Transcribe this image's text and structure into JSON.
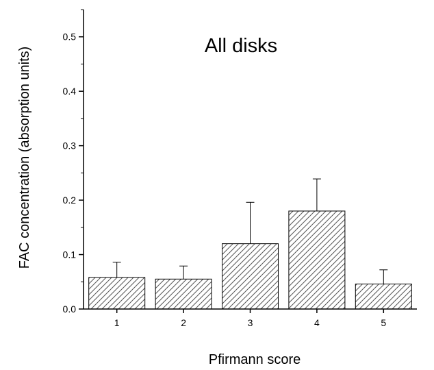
{
  "chart_data": {
    "type": "bar",
    "title": "All disks",
    "xlabel": "Pfirmann score",
    "ylabel": "FAC concentration (absorption units)",
    "categories": [
      "1",
      "2",
      "3",
      "4",
      "5"
    ],
    "values": [
      0.058,
      0.055,
      0.12,
      0.18,
      0.046
    ],
    "error_upper": [
      0.086,
      0.079,
      0.196,
      0.239,
      0.072
    ],
    "ylim": [
      0,
      0.55
    ],
    "yticks": [
      "0.0",
      "0.1",
      "0.2",
      "0.3",
      "0.4",
      "0.5"
    ],
    "ytick_values": [
      0,
      0.1,
      0.2,
      0.3,
      0.4,
      0.5
    ],
    "grid": false,
    "bar_fill": "hatched",
    "colors": {
      "stroke": "#000000",
      "hatch": "#555555",
      "background": "#ffffff"
    }
  }
}
